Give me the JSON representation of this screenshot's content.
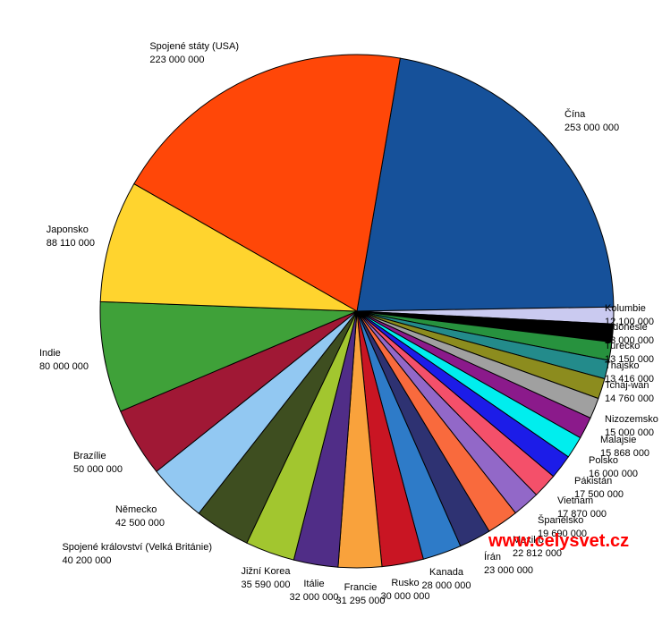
{
  "watermark": {
    "text": "www.celysvet.cz",
    "color": "#FF0000"
  },
  "chart_data": {
    "type": "pie",
    "title": "",
    "legend_position": "none",
    "label_position": "outside",
    "start_rotation_deg": 9.7,
    "direction": "clockwise",
    "total": 1147861000,
    "slices": [
      {
        "label": "Čína",
        "value": 253000000,
        "display": "253 000 000",
        "color": "#16519A"
      },
      {
        "label": "Kolumbie",
        "value": 12100000,
        "display": "12 100 000",
        "color": "#CACAF0"
      },
      {
        "label": "Indonésie",
        "value": 13000000,
        "display": "13 000 000",
        "color": "#000000"
      },
      {
        "label": "Turecko",
        "value": 13150000,
        "display": "13 150 000",
        "color": "#27923E"
      },
      {
        "label": "Thajsko",
        "value": 13416000,
        "display": "13 416 000",
        "color": "#238B8B"
      },
      {
        "label": "Tchaj-wan",
        "value": 14760000,
        "display": "14 760 000",
        "color": "#8C8C1E"
      },
      {
        "label": "Nizozemsko",
        "value": 15000000,
        "display": "15 000 000",
        "color": "#A0A0A0"
      },
      {
        "label": "Malajsie",
        "value": 15868000,
        "display": "15 868 000",
        "color": "#8B1A8B"
      },
      {
        "label": "Polsko",
        "value": 16000000,
        "display": "16 000 000",
        "color": "#00EEEE"
      },
      {
        "label": "Pákistán",
        "value": 17500000,
        "display": "17 500 000",
        "color": "#1C1CE8"
      },
      {
        "label": "Vietnam",
        "value": 17870000,
        "display": "17 870 000",
        "color": "#F4506A"
      },
      {
        "label": "Španělsko",
        "value": 19690000,
        "display": "19 690 000",
        "color": "#9268C8"
      },
      {
        "label": "Mexiko",
        "value": 22812000,
        "display": "22 812 000",
        "color": "#F96A3D"
      },
      {
        "label": "Írán",
        "value": 23000000,
        "display": "23 000 000",
        "color": "#2E3272"
      },
      {
        "label": "Kanada",
        "value": 28000000,
        "display": "28 000 000",
        "color": "#2E7BC8"
      },
      {
        "label": "Rusko",
        "value": 30000000,
        "display": "30 000 000",
        "color": "#C91523"
      },
      {
        "label": "Francie",
        "value": 31295000,
        "display": "31 295 000",
        "color": "#F9A23C"
      },
      {
        "label": "Itálie",
        "value": 32000000,
        "display": "32 000 000",
        "color": "#502D87"
      },
      {
        "label": "Jižní Korea",
        "value": 35590000,
        "display": "35 590 000",
        "color": "#A2C62F"
      },
      {
        "label": "Spojené království (Velká Británie)",
        "value": 40200000,
        "display": "40 200 000",
        "color": "#3E4E20"
      },
      {
        "label": "Německo",
        "value": 42500000,
        "display": "42 500 000",
        "color": "#92C8F2"
      },
      {
        "label": "Brazílie",
        "value": 50000000,
        "display": "50 000 000",
        "color": "#A01835"
      },
      {
        "label": "Indie",
        "value": 80000000,
        "display": "80 000 000",
        "color": "#3FA139"
      },
      {
        "label": "Japonsko",
        "value": 88110000,
        "display": "88 110 000",
        "color": "#FFD42E"
      },
      {
        "label": "Spojené státy (USA)",
        "value": 223000000,
        "display": "223 000 000",
        "color": "#FF4708"
      }
    ]
  }
}
